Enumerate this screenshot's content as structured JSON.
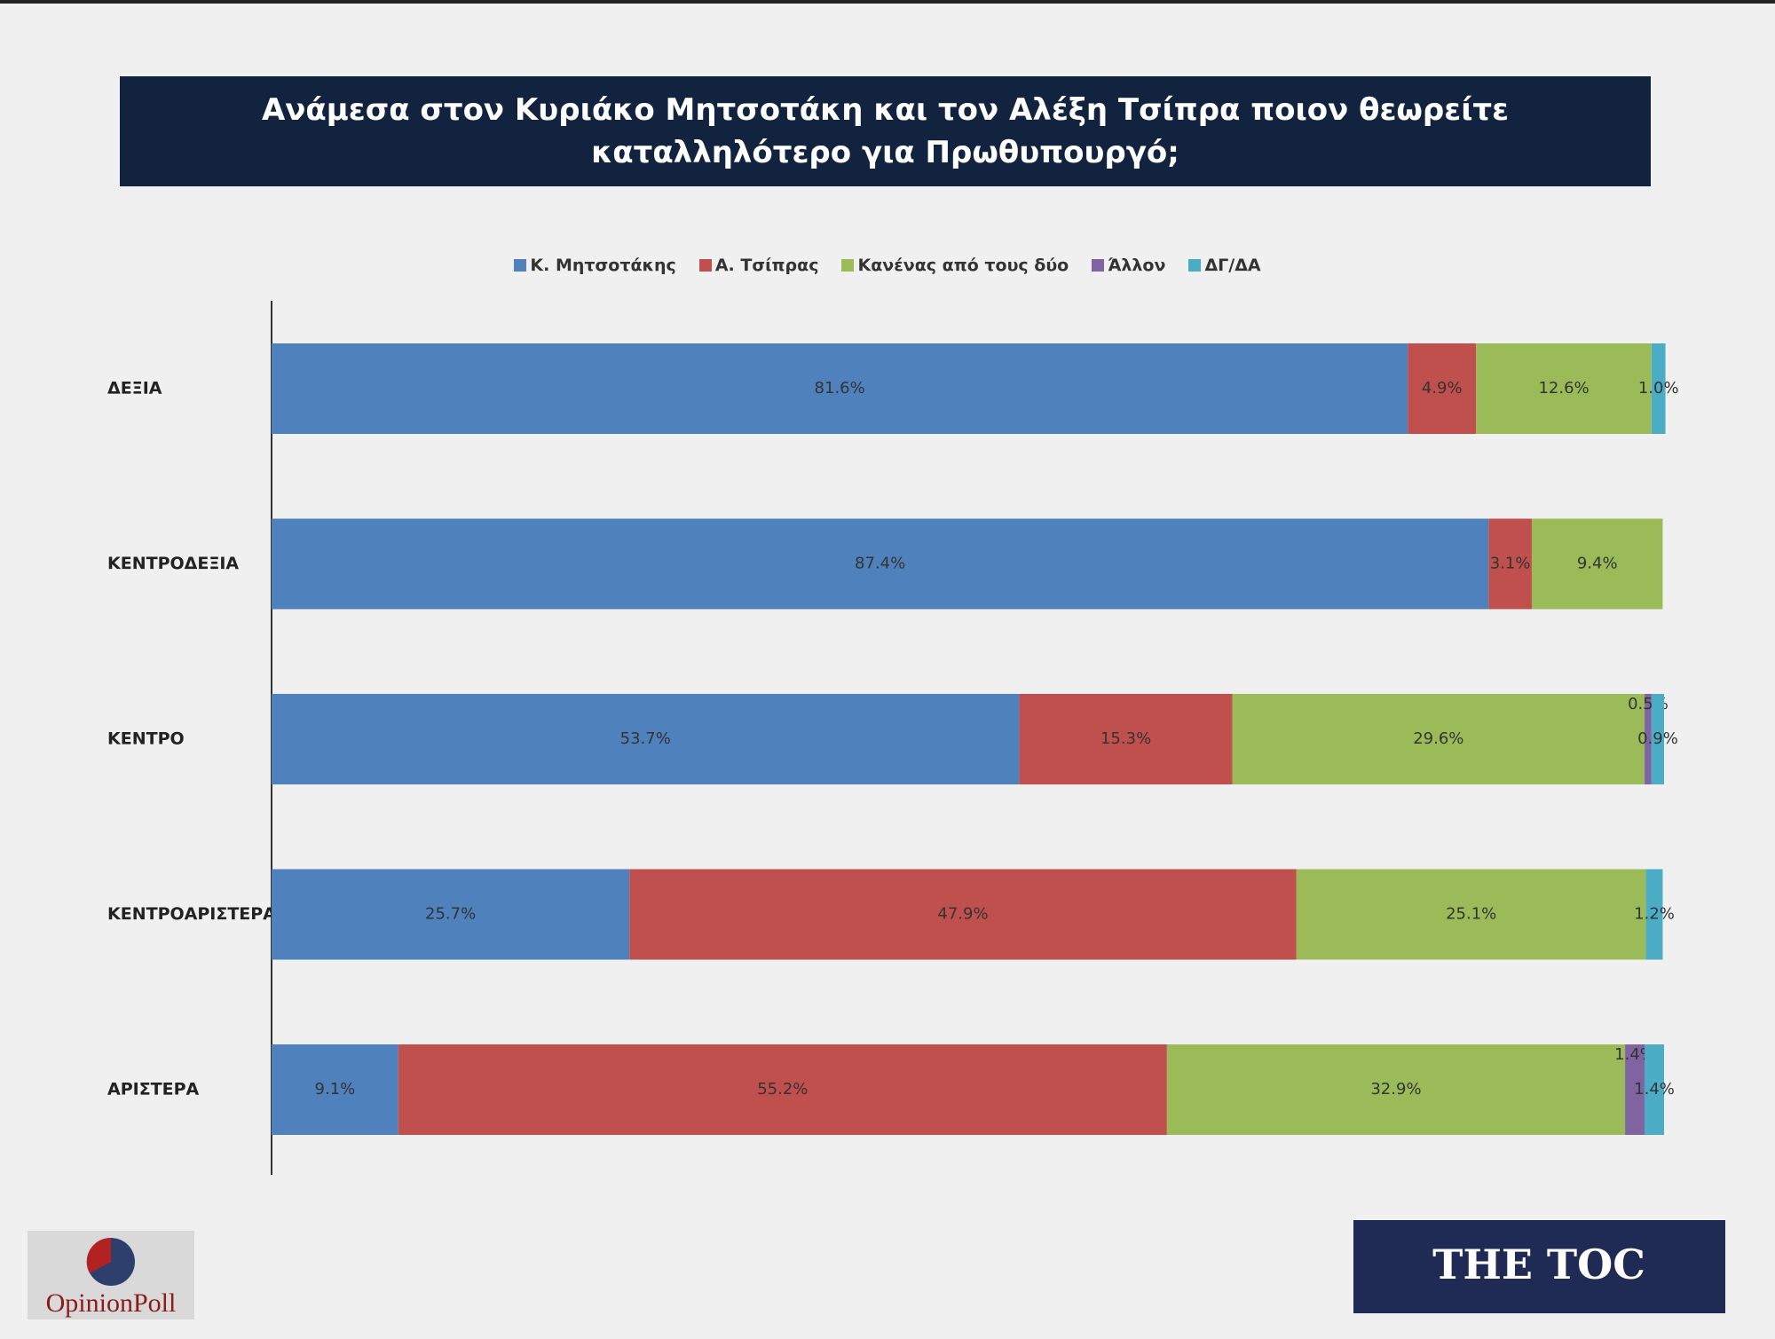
{
  "chart_data": {
    "type": "stacked-bar-horizontal",
    "title": "Ανάμεσα στον Κυριάκο Μητσοτάκη και τον Αλέξη Τσίπρα ποιον θεωρείτε καταλληλότερο για Πρωθυπουργό;",
    "categories": [
      "ΔΕΞΙΑ",
      "ΚΕΝΤΡΟΔΕΞΙΑ",
      "ΚΕΝΤΡΟ",
      "ΚΕΝΤΡΟΑΡΙΣΤΕΡΑ",
      "ΑΡΙΣΤΕΡΑ"
    ],
    "xlim": [
      0,
      100
    ],
    "series": [
      {
        "name": "Κ. Μητσοτάκης",
        "color": "#4f81bd",
        "values": [
          81.6,
          87.4,
          53.7,
          25.7,
          9.1
        ],
        "value_labels": [
          "81.6%",
          "87.4%",
          "53.7%",
          "25.7%",
          "9.1%"
        ]
      },
      {
        "name": "Α. Τσίπρας",
        "color": "#c0504d",
        "values": [
          4.9,
          3.1,
          15.3,
          47.9,
          55.2
        ],
        "value_labels": [
          "4.9%",
          "3.1%",
          "15.3%",
          "47.9%",
          "55.2%"
        ]
      },
      {
        "name": "Κανένας από τους δύο",
        "color": "#9bbb59",
        "values": [
          12.6,
          9.4,
          29.6,
          25.1,
          32.9
        ],
        "value_labels": [
          "12.6%",
          "9.4%",
          "29.6%",
          "25.1%",
          "32.9%"
        ]
      },
      {
        "name": "Άλλον",
        "color": "#8064a2",
        "values": [
          null,
          null,
          0.5,
          null,
          1.4
        ],
        "value_labels": [
          null,
          null,
          "0.5%",
          null,
          "1.4%"
        ]
      },
      {
        "name": "ΔΓ/ΔΑ",
        "color": "#4bacc6",
        "values": [
          1.0,
          null,
          0.9,
          1.2,
          1.4
        ],
        "value_labels": [
          "1.0%",
          null,
          "0.9%",
          "1.2%",
          "1.4%"
        ]
      }
    ],
    "logo_left": "OpinionPoll",
    "logo_right": "THE TOC"
  }
}
